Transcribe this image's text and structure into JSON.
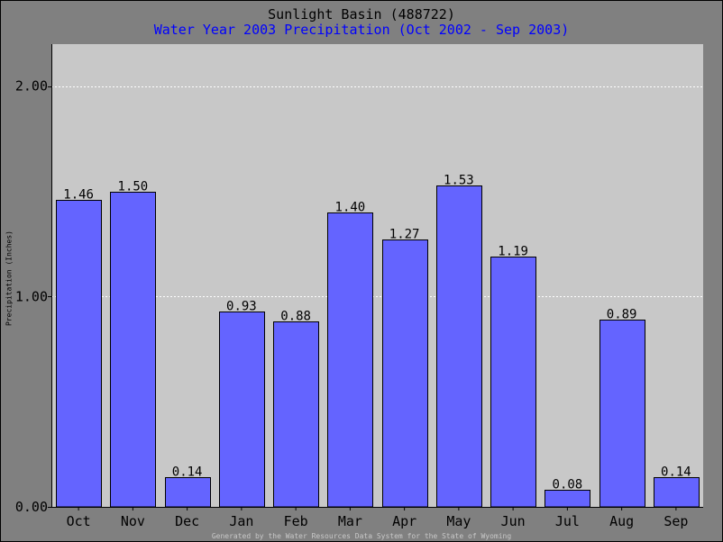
{
  "chart_data": {
    "type": "bar",
    "title": "Sunlight Basin (488722)",
    "subtitle": "Water Year 2003 Precipitation (Oct 2002 - Sep 2003)",
    "xlabel": "",
    "ylabel": "Precipitation (Inches)",
    "categories": [
      "Oct",
      "Nov",
      "Dec",
      "Jan",
      "Feb",
      "Mar",
      "Apr",
      "May",
      "Jun",
      "Jul",
      "Aug",
      "Sep"
    ],
    "values": [
      1.46,
      1.5,
      0.14,
      0.93,
      0.88,
      1.4,
      1.27,
      1.53,
      1.19,
      0.08,
      0.89,
      0.14
    ],
    "value_labels": [
      "1.46",
      "1.50",
      "0.14",
      "0.93",
      "0.88",
      "1.40",
      "1.27",
      "1.53",
      "1.19",
      "0.08",
      "0.89",
      "0.14"
    ],
    "ylim": [
      0,
      2.2
    ],
    "yticks": [
      0,
      1,
      2
    ],
    "ytick_labels": [
      "0.00",
      "1.00",
      "2.00"
    ],
    "grid": true,
    "legend": "none"
  },
  "footer": "Generated by the Water Resources Data System for the State of Wyoming",
  "colors": {
    "background": "#808080",
    "plot_area": "#c8c8c8",
    "bar_fill": "#6464ff",
    "bar_stroke": "#000000",
    "grid": "#ffffff",
    "title": "#000000",
    "subtitle": "#0000ff",
    "footer": "#c8c8c8"
  }
}
